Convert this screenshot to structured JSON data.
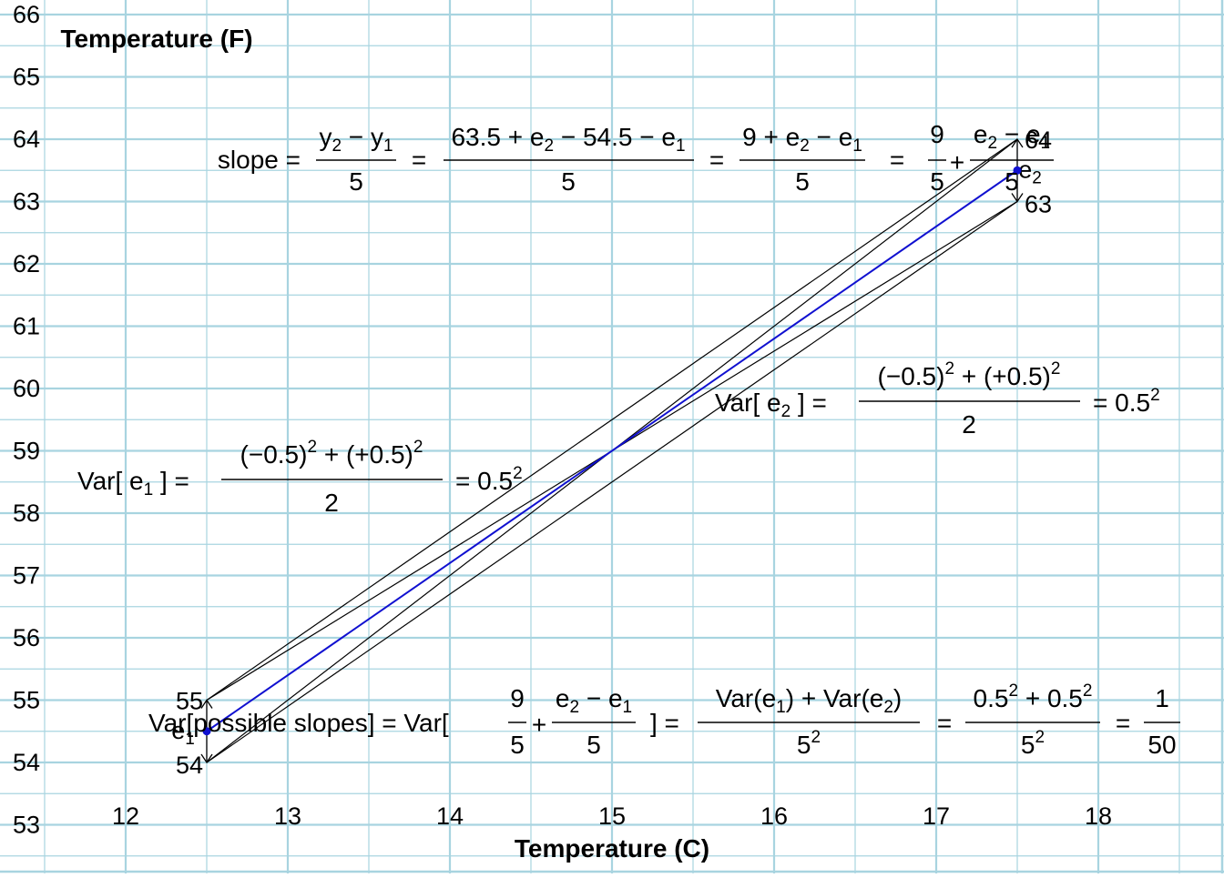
{
  "chart_data": {
    "type": "line",
    "xlabel": "Temperature (C)",
    "ylabel": "Temperature (F)",
    "x_ticks": [
      "12",
      "13",
      "14",
      "15",
      "16",
      "17",
      "18"
    ],
    "y_ticks": [
      "53",
      "54",
      "55",
      "56",
      "57",
      "58",
      "59",
      "60",
      "61",
      "62",
      "63",
      "64",
      "65",
      "66"
    ],
    "grid": true,
    "colors": {
      "grid": "#a8d4e0",
      "fit": "#1010d0",
      "envelope": "#000000"
    },
    "fit_line": {
      "x": [
        12.5,
        17.5
      ],
      "y": [
        54.5,
        63.5
      ]
    },
    "envelope_lines": [
      {
        "x": [
          12.5,
          17.5
        ],
        "y": [
          55,
          64
        ]
      },
      {
        "x": [
          12.5,
          17.5
        ],
        "y": [
          54,
          63
        ]
      },
      {
        "x": [
          12.5,
          17.5
        ],
        "y": [
          55,
          63
        ]
      },
      {
        "x": [
          12.5,
          17.5
        ],
        "y": [
          54,
          64
        ]
      }
    ],
    "points": [
      {
        "x": 12.5,
        "y": 54.5
      },
      {
        "x": 17.5,
        "y": 63.5
      }
    ],
    "error_bars": [
      {
        "x": 12.5,
        "ymin": 54,
        "ymax": 55,
        "label": "e",
        "sub": "1",
        "label_low": "54",
        "label_high": "55"
      },
      {
        "x": 17.5,
        "ymin": 63,
        "ymax": 64,
        "label": "e",
        "sub": "2",
        "label_low": "63",
        "label_high": "64"
      }
    ]
  },
  "equations": {
    "slope": {
      "lhs": "slope =",
      "f1_num_y2": "y",
      "f1_num_sub2": "2",
      "f1_num_minus": " − ",
      "f1_num_y1": "y",
      "f1_num_sub1": "1",
      "f1_den": "5",
      "eq": "=",
      "f2_num_a": "63.5 + e",
      "f2_num_sub2": "2",
      "f2_num_b": " − 54.5 − e",
      "f2_num_sub1": "1",
      "f2_den": "5",
      "f3_num_a": "9 + e",
      "f3_num_sub2": "2",
      "f3_num_b": " − e",
      "f3_num_sub1": "1",
      "f3_den": "5",
      "f4_num": "9",
      "f4_den": "5",
      "plus": "+",
      "f5_num_a": "e",
      "f5_num_sub2": "2",
      "f5_num_b": " − e",
      "f5_num_sub1": "1",
      "f5_den": "5"
    },
    "var_e1": {
      "lhs_a": "Var[ e",
      "lhs_sub": "1",
      "lhs_b": " ] =",
      "num": "(−0.5)",
      "num_sup1": "2",
      "num_mid": " + (+0.5)",
      "num_sup2": "2",
      "den": "2",
      "rhs": "=  0.5",
      "rhs_sup": "2"
    },
    "var_e2": {
      "lhs_a": "Var[ e",
      "lhs_sub": "2",
      "lhs_b": " ] =",
      "num": "(−0.5)",
      "num_sup1": "2",
      "num_mid": " + (+0.5)",
      "num_sup2": "2",
      "den": "2",
      "rhs": "=  0.5",
      "rhs_sup": "2"
    },
    "var_slopes": {
      "lhs": "Var[possible slopes] = Var[",
      "f1_num": "9",
      "f1_den": "5",
      "plus": "+",
      "f2_num_a": "e",
      "f2_num_sub2": "2",
      "f2_num_b": " − e",
      "f2_num_sub1": "1",
      "f2_den": "5",
      "close": "] =",
      "f3_num_a": "Var(e",
      "f3_num_sub1": "1",
      "f3_num_b": ") + Var(e",
      "f3_num_sub2": "2",
      "f3_num_c": ")",
      "f3_den": "5",
      "f3_den_sup": "2",
      "eq": "=",
      "f4_num_a": "0.5",
      "f4_num_sup1": "2",
      "f4_num_b": " + 0.5",
      "f4_num_sup2": "2",
      "f4_den": "5",
      "f4_den_sup": "2",
      "f5_num": "1",
      "f5_den": "50"
    }
  }
}
